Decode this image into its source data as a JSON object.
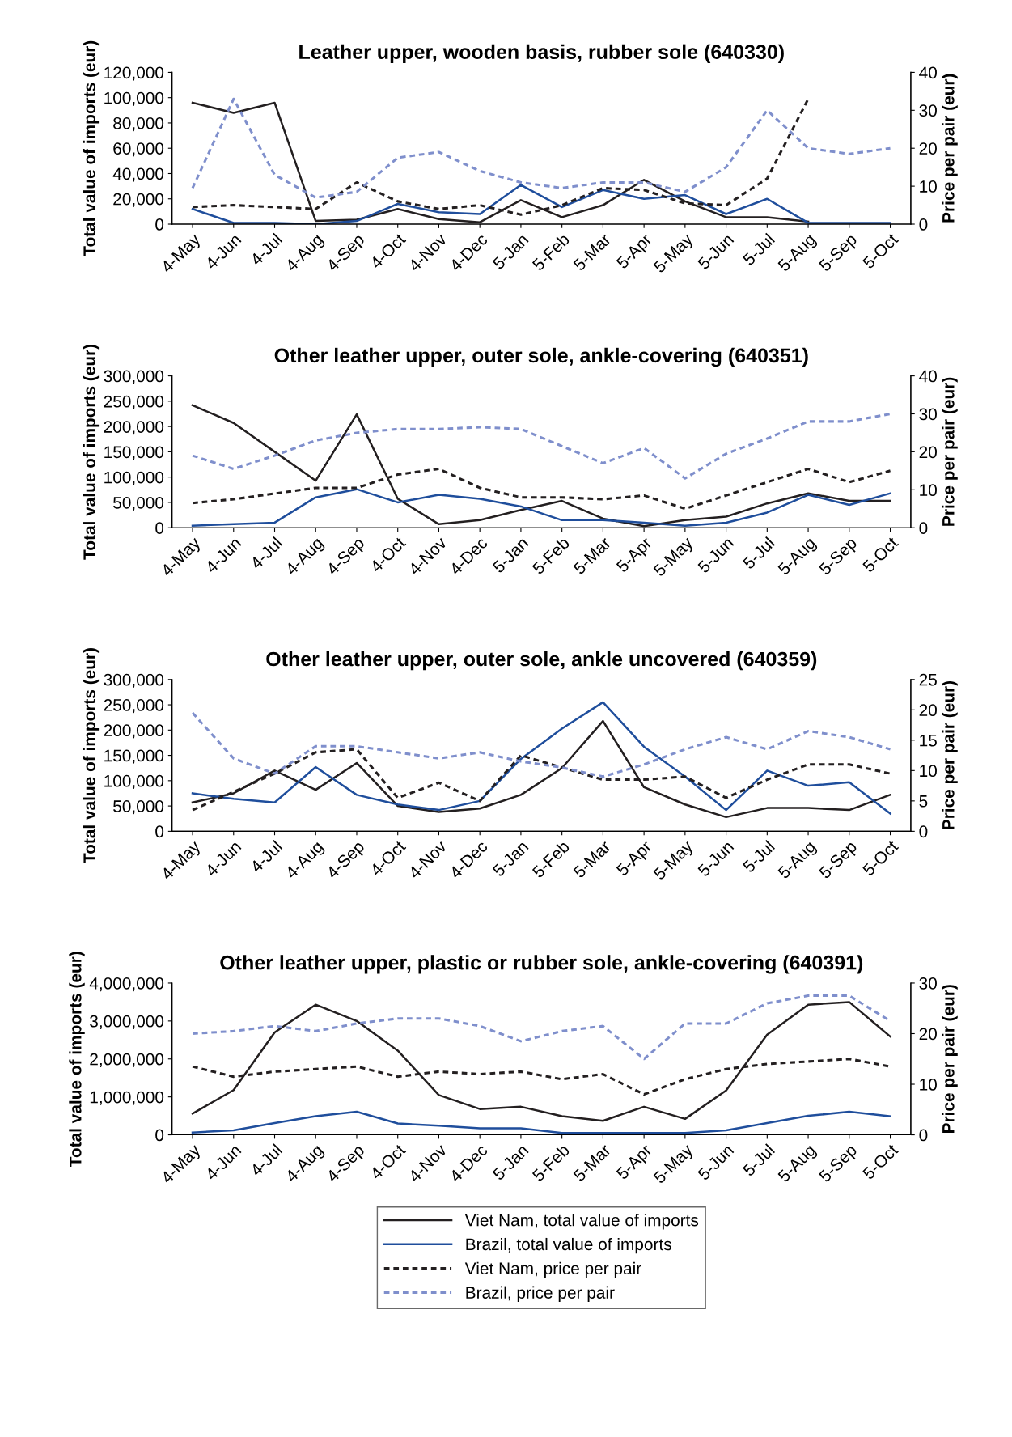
{
  "chart_data": [
    {
      "type": "line",
      "title": "Leather upper, wooden basis, rubber sole (640330)",
      "ylabel": "Total value of imports (eur)",
      "y2label": "Price per pair (eur)",
      "categories": [
        "4-May",
        "4-Jun",
        "4-Jul",
        "4-Aug",
        "4-Sep",
        "4-Oct",
        "4-Nov",
        "4-Dec",
        "5-Jan",
        "5-Feb",
        "5-Mar",
        "5-Apr",
        "5-May",
        "5-Jun",
        "5-Jul",
        "5-Aug",
        "5-Sep",
        "5-Oct"
      ],
      "ylim": [
        0,
        120000
      ],
      "yticks": [
        0,
        {
          "value": 20000,
          "label": "20,000"
        },
        {
          "value": 40000,
          "label": "40,000"
        },
        {
          "value": 60000,
          "label": "60,000"
        },
        {
          "value": 80000,
          "label": "80,000"
        },
        {
          "value": 100000,
          "label": "100,000"
        },
        {
          "value": 120000,
          "label": "120,000"
        }
      ],
      "y2lim": [
        0,
        40
      ],
      "y2ticks": [
        0,
        10,
        20,
        30,
        40
      ],
      "grid": false,
      "marker": "none",
      "series": [
        {
          "color": "#231f20",
          "line_style": "solid",
          "values": [
            96000,
            88000,
            96000,
            2500,
            3500,
            12000,
            4000,
            1500,
            19000,
            5500,
            15000,
            35000,
            18000,
            5500,
            5500,
            2000,
            null,
            null
          ]
        },
        {
          "color": "#1f4e9c",
          "line_style": "solid",
          "values": [
            12000,
            1000,
            1000,
            0,
            2500,
            16000,
            9500,
            8000,
            31000,
            13500,
            27000,
            20000,
            23000,
            8000,
            20000,
            1000,
            1000,
            1000
          ]
        },
        {
          "color": "#231f20",
          "line_style": "dashed",
          "axis": "y2",
          "values": [
            4.5,
            5,
            4.5,
            4,
            11,
            6,
            4,
            5,
            2.5,
            5,
            9.5,
            9,
            5.5,
            5,
            12,
            33,
            null,
            null
          ]
        },
        {
          "color": "#7f8fcc",
          "line_style": "dashed",
          "axis": "y2",
          "values": [
            9.5,
            33,
            13,
            7,
            8.5,
            17.5,
            19,
            14,
            11,
            9.5,
            11,
            11,
            8.5,
            15,
            30,
            20,
            18.5,
            20
          ]
        }
      ]
    },
    {
      "type": "line",
      "title": "Other leather upper, outer sole, ankle-covering (640351)",
      "ylabel": "Total value of imports (eur)",
      "y2label": "Price per pair (eur)",
      "categories": [
        "4-May",
        "4-Jun",
        "4-Jul",
        "4-Aug",
        "4-Sep",
        "4-Oct",
        "4-Nov",
        "4-Dec",
        "5-Jan",
        "5-Feb",
        "5-Mar",
        "5-Apr",
        "5-May",
        "5-Jun",
        "5-Jul",
        "5-Aug",
        "5-Sep",
        "5-Oct"
      ],
      "ylim": [
        0,
        300000
      ],
      "yticks": [
        0,
        {
          "value": 50000,
          "label": "50,000"
        },
        {
          "value": 100000,
          "label": "100,000"
        },
        {
          "value": 150000,
          "label": "150,000"
        },
        {
          "value": 200000,
          "label": "200,000"
        },
        {
          "value": 250000,
          "label": "250,000"
        },
        {
          "value": 300000,
          "label": "300,000"
        }
      ],
      "y2lim": [
        0,
        40
      ],
      "y2ticks": [
        0,
        10,
        20,
        30,
        40
      ],
      "grid": false,
      "marker": "none",
      "series": [
        {
          "color": "#231f20",
          "line_style": "solid",
          "values": [
            242000,
            207000,
            150000,
            93000,
            224000,
            57000,
            7000,
            15000,
            35000,
            53000,
            18000,
            3000,
            15000,
            22000,
            48000,
            68000,
            53000,
            53000
          ]
        },
        {
          "color": "#1f4e9c",
          "line_style": "solid",
          "values": [
            4000,
            7000,
            10000,
            60000,
            76000,
            50000,
            65000,
            57000,
            42000,
            15000,
            15000,
            10000,
            4000,
            10000,
            30000,
            65000,
            45000,
            68000
          ]
        },
        {
          "color": "#231f20",
          "line_style": "dashed",
          "axis": "y2",
          "values": [
            6.5,
            7.5,
            9,
            10.5,
            10.5,
            14,
            15.5,
            10.5,
            8,
            8,
            7.5,
            8.5,
            5,
            8.5,
            12,
            15.5,
            12,
            15
          ]
        },
        {
          "color": "#7f8fcc",
          "line_style": "dashed",
          "axis": "y2",
          "values": [
            19,
            15.5,
            19,
            23,
            25,
            26,
            26,
            26.5,
            26,
            21.5,
            17,
            21,
            13,
            19.5,
            23.5,
            28,
            28,
            30
          ]
        }
      ]
    },
    {
      "type": "line",
      "title": "Other leather upper, outer sole, ankle uncovered (640359)",
      "ylabel": "Total value of imports (eur)",
      "y2label": "Price per pair (eur)",
      "categories": [
        "4-May",
        "4-Jun",
        "4-Jul",
        "4-Aug",
        "4-Sep",
        "4-Oct",
        "4-Nov",
        "4-Dec",
        "5-Jan",
        "5-Feb",
        "5-Mar",
        "5-Apr",
        "5-May",
        "5-Jun",
        "5-Jul",
        "5-Aug",
        "5-Sep",
        "5-Oct"
      ],
      "ylim": [
        0,
        300000
      ],
      "yticks": [
        0,
        {
          "value": 50000,
          "label": "50,000"
        },
        {
          "value": 100000,
          "label": "100,000"
        },
        {
          "value": 150000,
          "label": "150,000"
        },
        {
          "value": 200000,
          "label": "200,000"
        },
        {
          "value": 250000,
          "label": "250,000"
        },
        {
          "value": 300000,
          "label": "300,000"
        }
      ],
      "y2lim": [
        0,
        25
      ],
      "y2ticks": [
        0,
        5,
        10,
        15,
        20,
        25
      ],
      "grid": false,
      "marker": "none",
      "series": [
        {
          "color": "#231f20",
          "line_style": "solid",
          "values": [
            57000,
            75000,
            120000,
            82000,
            135000,
            50000,
            38000,
            45000,
            72000,
            125000,
            218000,
            87000,
            53000,
            28000,
            46000,
            46000,
            42000,
            72000
          ]
        },
        {
          "color": "#1f4e9c",
          "line_style": "solid",
          "values": [
            75000,
            64000,
            57000,
            127000,
            72000,
            53000,
            42000,
            60000,
            143000,
            203000,
            255000,
            167000,
            108000,
            42000,
            120000,
            90000,
            97000,
            35000
          ]
        },
        {
          "color": "#231f20",
          "line_style": "dashed",
          "axis": "y2",
          "values": [
            3.5,
            6.5,
            9.5,
            13,
            13.5,
            5.5,
            8,
            5,
            12.5,
            10.5,
            8.5,
            8.5,
            9,
            5.5,
            8.5,
            11,
            11,
            9.5
          ]
        },
        {
          "color": "#7f8fcc",
          "line_style": "dashed",
          "axis": "y2",
          "values": [
            19.5,
            12,
            9.5,
            14,
            14,
            13,
            12,
            13,
            11.5,
            10.5,
            9,
            11,
            13.5,
            15.5,
            13.5,
            16.5,
            15.5,
            13.5
          ]
        }
      ]
    },
    {
      "type": "line",
      "title": "Other leather upper, plastic or rubber sole, ankle-covering (640391)",
      "ylabel": "Total value of imports (eur)",
      "y2label": "Price per pair (eur)",
      "categories": [
        "4-May",
        "4-Jun",
        "4-Jul",
        "4-Aug",
        "4-Sep",
        "4-Oct",
        "4-Nov",
        "4-Dec",
        "5-Jan",
        "5-Feb",
        "5-Mar",
        "5-Apr",
        "5-May",
        "5-Jun",
        "5-Jul",
        "5-Aug",
        "5-Sep",
        "5-Oct"
      ],
      "ylim": [
        0,
        4000000
      ],
      "yticks": [
        0,
        {
          "value": 1000000,
          "label": "1,000,000"
        },
        {
          "value": 2000000,
          "label": "2,000,000"
        },
        {
          "value": 3000000,
          "label": "3,000,000"
        },
        {
          "value": 4000000,
          "label": "4,000,000"
        }
      ],
      "y2lim": [
        0,
        30
      ],
      "y2ticks": [
        0,
        10,
        20,
        30
      ],
      "grid": false,
      "marker": "none",
      "legend": "bottom",
      "series": [
        {
          "name": "Viet Nam, total value of imports",
          "color": "#231f20",
          "line_style": "solid",
          "values": [
            560000,
            1180000,
            2700000,
            3430000,
            3000000,
            2220000,
            1050000,
            680000,
            740000,
            490000,
            370000,
            740000,
            420000,
            1170000,
            2640000,
            3430000,
            3500000,
            2590000
          ]
        },
        {
          "name": "Brazil, total value of imports",
          "color": "#1f4e9c",
          "line_style": "solid",
          "values": [
            60000,
            120000,
            310000,
            490000,
            610000,
            300000,
            240000,
            170000,
            170000,
            50000,
            50000,
            50000,
            50000,
            120000,
            310000,
            500000,
            610000,
            490000
          ]
        },
        {
          "name": "Viet Nam, price per pair",
          "color": "#231f20",
          "line_style": "dashed",
          "axis": "y2",
          "values": [
            13.5,
            11.5,
            12.5,
            13,
            13.5,
            11.5,
            12.5,
            12,
            12.5,
            11,
            12,
            8,
            11,
            13,
            14,
            14.5,
            15,
            13.5
          ]
        },
        {
          "name": "Brazil, price per pair",
          "color": "#7f8fcc",
          "line_style": "dashed",
          "axis": "y2",
          "values": [
            20,
            20.5,
            21.5,
            20.5,
            22,
            23,
            23,
            21.5,
            18.5,
            20.5,
            21.5,
            15,
            22,
            22,
            26,
            27.5,
            27.5,
            22.5
          ]
        }
      ]
    }
  ]
}
